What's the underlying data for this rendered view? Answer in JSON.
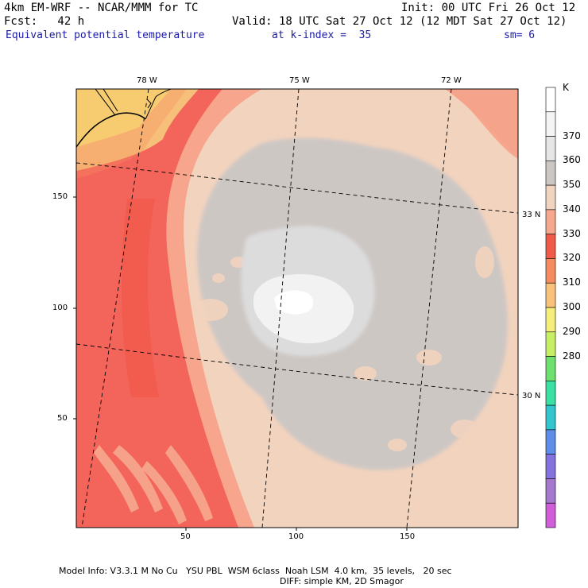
{
  "header": {
    "model_line": "4km EM-WRF -- NCAR/MMM for TC",
    "init_line": "Init: 00 UTC Fri 26 Oct 12",
    "fcst_line": "Fcst:   42 h",
    "valid_line": "Valid: 18 UTC Sat 27 Oct 12 (12 MDT Sat 27 Oct 12)",
    "field_name": "Equivalent potential temperature",
    "level_text": "at k-index =  35",
    "smoothing_text": "sm= 6"
  },
  "map": {
    "lon_labels": [
      "78 W",
      "75 W",
      "72 W"
    ],
    "lat_labels": [
      "33 N",
      "30 N"
    ],
    "x_ticks": [
      "50",
      "100",
      "150"
    ],
    "y_ticks": [
      "150",
      "100",
      "50"
    ]
  },
  "colorbar": {
    "unit": "K",
    "levels": [
      370,
      360,
      350,
      340,
      330,
      320,
      310,
      300,
      290,
      280
    ],
    "colors": [
      "#ffffff",
      "#f4f4f4",
      "#e6e6e6",
      "#cdc7c4",
      "#f0d4c0",
      "#f6a88e",
      "#f05a48",
      "#f48c60",
      "#f8c27a",
      "#f6ee7a",
      "#c8ee68",
      "#6ee06e",
      "#3ae0a4",
      "#34c6d0",
      "#5e8ee8",
      "#8472de",
      "#a678ce",
      "#d05ed8"
    ]
  },
  "footer": {
    "line1": "Model Info: V3.3.1 M No Cu   YSU PBL  WSM 6class  Noah LSM  4.0 km,  35 levels,   20 sec",
    "line2": "DIFF: simple KM, 2D Smagor"
  }
}
